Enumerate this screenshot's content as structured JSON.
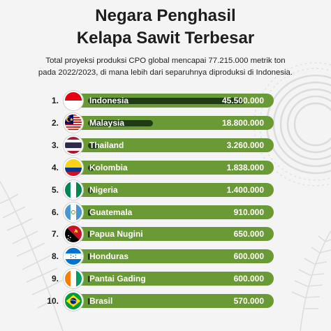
{
  "title_line1": "Negara Penghasil",
  "title_line2": "Kelapa Sawit Terbesar",
  "subtitle_line1": "Total proyeksi produksi CPO global mencapai 77.215.000 metrik ton",
  "subtitle_line2": "pada 2022/2023, di mana lebih dari separuhnya diproduksi di Indonesia.",
  "colors": {
    "bar": "#6a9a36",
    "track": "#1f3b12",
    "text": "#1d1d1d",
    "background": "#f4f4f4"
  },
  "chart_data": {
    "type": "bar",
    "orientation": "horizontal",
    "title": "Negara Penghasil Kelapa Sawit Terbesar",
    "categories": [
      "Indonesia",
      "Malaysia",
      "Thailand",
      "Kolombia",
      "Nigeria",
      "Guatemala",
      "Papua Nugini",
      "Honduras",
      "Pantai Gading",
      "Brasil"
    ],
    "values": [
      45500000,
      18800000,
      3260000,
      1838000,
      1400000,
      910000,
      650000,
      600000,
      600000,
      570000
    ],
    "rows": [
      {
        "rank": "1.",
        "country": "Indonesia",
        "value_label": "45.500.000",
        "value": 45500000,
        "flag": "flag-indonesia"
      },
      {
        "rank": "2.",
        "country": "Malaysia",
        "value_label": "18.800.000",
        "value": 18800000,
        "flag": "flag-malaysia"
      },
      {
        "rank": "3.",
        "country": "Thailand",
        "value_label": "3.260.000",
        "value": 3260000,
        "flag": "flag-thailand"
      },
      {
        "rank": "4.",
        "country": "Kolombia",
        "value_label": "1.838.000",
        "value": 1838000,
        "flag": "flag-colombia"
      },
      {
        "rank": "5.",
        "country": "Nigeria",
        "value_label": "1.400.000",
        "value": 1400000,
        "flag": "flag-nigeria"
      },
      {
        "rank": "6.",
        "country": "Guatemala",
        "value_label": "910.000",
        "value": 910000,
        "flag": "flag-guatemala"
      },
      {
        "rank": "7.",
        "country": "Papua Nugini",
        "value_label": "650.000",
        "value": 650000,
        "flag": "flag-papua-new-guinea"
      },
      {
        "rank": "8.",
        "country": "Honduras",
        "value_label": "600.000",
        "value": 600000,
        "flag": "flag-honduras"
      },
      {
        "rank": "9.",
        "country": "Pantai Gading",
        "value_label": "600.000",
        "value": 600000,
        "flag": "flag-ivory-coast"
      },
      {
        "rank": "10.",
        "country": "Brasil",
        "value_label": "570.000",
        "value": 570000,
        "flag": "flag-brazil"
      }
    ]
  }
}
